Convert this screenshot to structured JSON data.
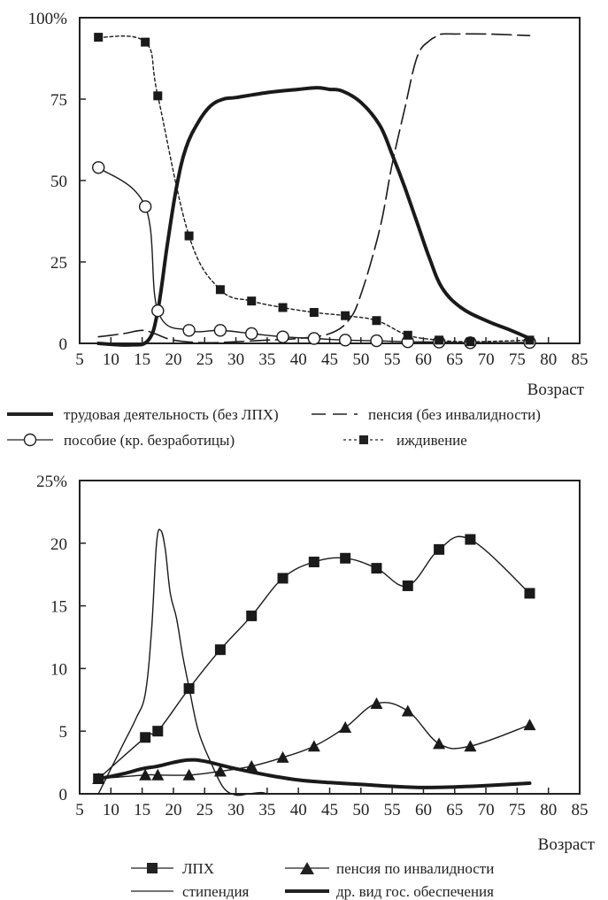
{
  "chart_data": [
    {
      "type": "line",
      "title": "",
      "xlabel": "Возраст",
      "ylabel": "",
      "xlim": [
        5,
        85
      ],
      "ylim": [
        0,
        100
      ],
      "x_ticks": [
        "5",
        "10",
        "15",
        "20",
        "25",
        "30",
        "35",
        "40",
        "45",
        "50",
        "55",
        "60",
        "65",
        "70",
        "75",
        "80",
        "85"
      ],
      "y_ticks": [
        "0",
        "25",
        "50",
        "75",
        "100%"
      ],
      "legend_position": "below",
      "series": [
        {
          "name": "трудовая деятельность (без ЛПХ)",
          "style": "thick",
          "marker": "none",
          "x": [
            8,
            13,
            16,
            17.5,
            19,
            20.5,
            22,
            24,
            26,
            28,
            30,
            35,
            40,
            43,
            45,
            47,
            50,
            53,
            55,
            57,
            59,
            61,
            63,
            66,
            70,
            74,
            77
          ],
          "y": [
            0,
            -0.5,
            1,
            10,
            30,
            48,
            60,
            68,
            73,
            75,
            75.5,
            77,
            78,
            78.5,
            78,
            77.5,
            74,
            67,
            58,
            48,
            37,
            26,
            17,
            11,
            7,
            4,
            1.5
          ]
        },
        {
          "name": "пенсия (без инвалидности)",
          "style": "dashed",
          "marker": "none",
          "x": [
            8,
            12,
            15,
            17,
            20,
            25,
            30,
            35,
            40,
            45,
            48,
            50,
            53,
            55,
            57,
            59,
            61,
            62.5,
            63,
            65,
            70,
            77
          ],
          "y": [
            2,
            3,
            4,
            3,
            1,
            0.2,
            0.5,
            1,
            1.5,
            3,
            7,
            15,
            35,
            55,
            72,
            88,
            93,
            94.5,
            95,
            95,
            95,
            94.5
          ]
        },
        {
          "name": "пособие (кр. безработицы)",
          "style": "thin",
          "marker": "circle",
          "x": [
            8,
            15.5,
            17.5,
            22.5,
            27.5,
            32.5,
            37.5,
            42.5,
            47.5,
            52.5,
            57.5,
            62.5,
            67.5,
            77
          ],
          "y": [
            54,
            42,
            10,
            4,
            4,
            3,
            2,
            1.5,
            1,
            0.8,
            0.5,
            0.4,
            0.2,
            0.3
          ]
        },
        {
          "name": "иждивение",
          "style": "dotted",
          "marker": "square",
          "x": [
            8,
            15.5,
            17.5,
            22.5,
            27.5,
            32.5,
            37.5,
            42.5,
            47.5,
            52.5,
            57.5,
            62.5,
            67.5,
            77
          ],
          "y": [
            94,
            92.5,
            76,
            33,
            16.5,
            13,
            11,
            9.5,
            8.5,
            7,
            2.5,
            1,
            0.5,
            1
          ]
        }
      ]
    },
    {
      "type": "line",
      "title": "",
      "xlabel": "Возраст",
      "ylabel": "",
      "xlim": [
        5,
        85
      ],
      "ylim": [
        0,
        25
      ],
      "x_ticks": [
        "5",
        "10",
        "15",
        "20",
        "25",
        "30",
        "35",
        "40",
        "45",
        "50",
        "55",
        "60",
        "65",
        "70",
        "75",
        "80",
        "85"
      ],
      "y_ticks": [
        "0",
        "5",
        "10",
        "15",
        "20",
        "25%"
      ],
      "legend_position": "below",
      "series": [
        {
          "name": "ЛПХ",
          "style": "thin",
          "marker": "square",
          "x": [
            8,
            15.5,
            17.5,
            22.5,
            27.5,
            32.5,
            37.5,
            42.5,
            47.5,
            52.5,
            57.5,
            62.5,
            67.5,
            77
          ],
          "y": [
            1.2,
            4.5,
            5,
            8.4,
            11.5,
            14.2,
            17.2,
            18.5,
            18.8,
            18,
            16.6,
            19.5,
            20.3,
            16
          ]
        },
        {
          "name": "пенсия по инвалидности",
          "style": "thin",
          "marker": "triangle",
          "x": [
            8,
            15.5,
            17.5,
            22.5,
            27.5,
            32.5,
            37.5,
            42.5,
            47.5,
            52.5,
            57.5,
            62.5,
            67.5,
            77
          ],
          "y": [
            1.2,
            1.5,
            1.5,
            1.5,
            1.8,
            2.2,
            2.9,
            3.8,
            5.3,
            7.2,
            6.6,
            4,
            3.8,
            5.5
          ]
        },
        {
          "name": "стипендия",
          "style": "thin",
          "marker": "none",
          "x": [
            8,
            10,
            12,
            14,
            15.5,
            16.5,
            17.3,
            18,
            18.7,
            19.5,
            20.5,
            21.5,
            22.5,
            24,
            26,
            28,
            30,
            32,
            34,
            35
          ],
          "y": [
            0,
            2,
            4,
            6,
            8,
            13,
            20,
            21,
            19.5,
            16,
            14,
            11,
            8.5,
            5,
            2.5,
            0.5,
            -0.1,
            0,
            0.1,
            0
          ]
        },
        {
          "name": "др. вид гос. обеспечения",
          "style": "thick",
          "marker": "none",
          "x": [
            8,
            12,
            15,
            17.5,
            20,
            22.5,
            25,
            30,
            35,
            40,
            45,
            50,
            55,
            60,
            65,
            70,
            77
          ],
          "y": [
            1.2,
            1.6,
            2,
            2.2,
            2.5,
            2.7,
            2.6,
            2,
            1.5,
            1.1,
            0.9,
            0.75,
            0.6,
            0.5,
            0.55,
            0.65,
            0.85
          ]
        }
      ]
    }
  ]
}
